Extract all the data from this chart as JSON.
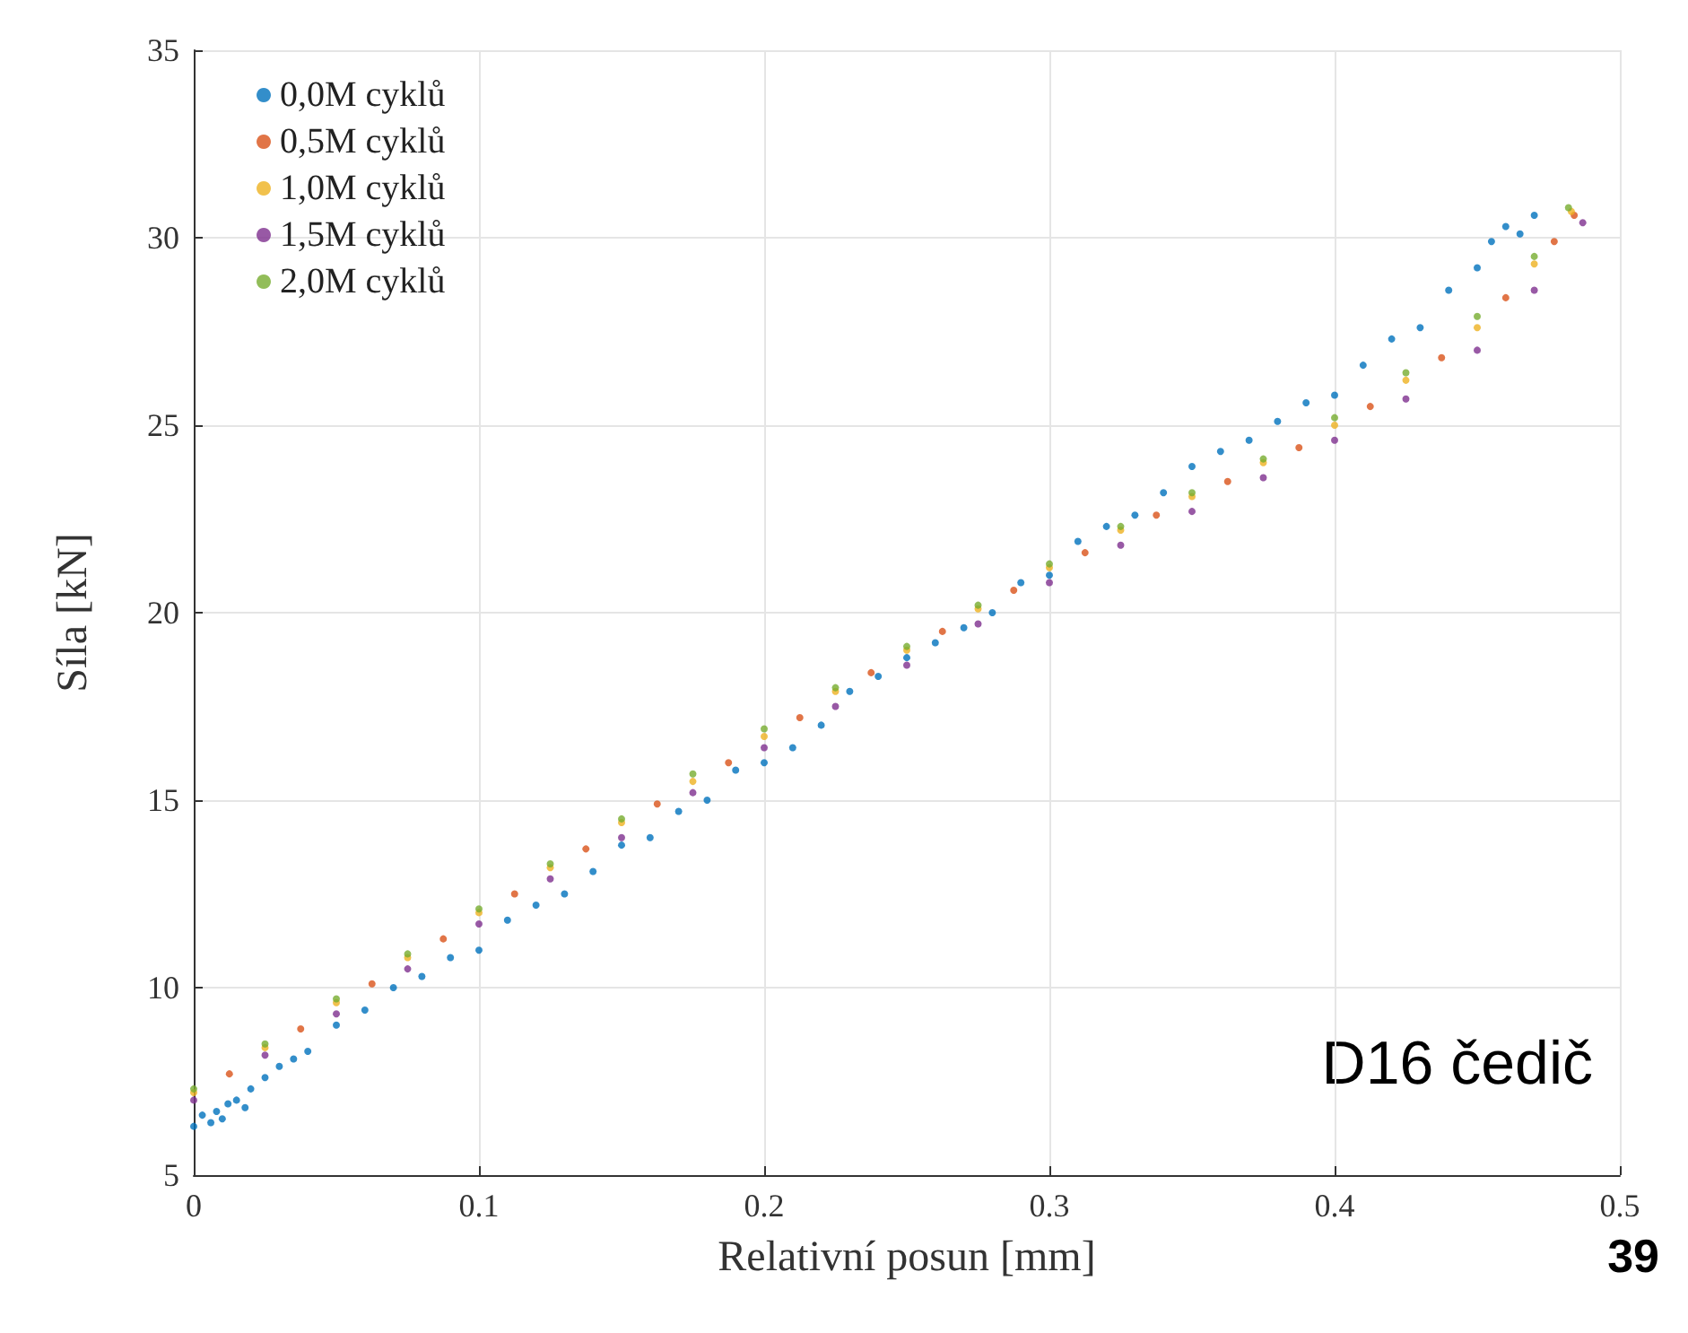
{
  "chart_data": {
    "type": "scatter",
    "xlabel": "Relativní posun [mm]",
    "ylabel": "Síla [kN]",
    "xlim": [
      0,
      0.5
    ],
    "ylim": [
      5,
      35
    ],
    "xticks": [
      0,
      0.1,
      0.2,
      0.3,
      0.4,
      0.5
    ],
    "yticks": [
      5,
      10,
      15,
      20,
      25,
      30,
      35
    ],
    "grid": true,
    "legend": "top left",
    "marker": "circle",
    "annotations": [
      "D16 čedič",
      "39"
    ],
    "series": [
      {
        "name": "0,0M cyklů",
        "color": "#0072bd",
        "x": [
          0,
          0.003,
          0.006,
          0.008,
          0.01,
          0.012,
          0.015,
          0.018,
          0.02,
          0.025,
          0.03,
          0.035,
          0.04,
          0.05,
          0.06,
          0.07,
          0.08,
          0.09,
          0.1,
          0.11,
          0.12,
          0.13,
          0.14,
          0.15,
          0.16,
          0.17,
          0.18,
          0.19,
          0.2,
          0.21,
          0.22,
          0.23,
          0.24,
          0.25,
          0.26,
          0.27,
          0.28,
          0.29,
          0.3,
          0.31,
          0.32,
          0.33,
          0.34,
          0.35,
          0.36,
          0.37,
          0.38,
          0.39,
          0.4,
          0.41,
          0.42,
          0.43,
          0.44,
          0.45,
          0.455,
          0.46,
          0.465,
          0.47
        ],
        "values": [
          6.3,
          6.6,
          6.4,
          6.7,
          6.5,
          6.9,
          7.0,
          6.8,
          7.3,
          7.6,
          7.9,
          8.1,
          8.3,
          9.0,
          9.4,
          10.0,
          10.3,
          10.8,
          11.0,
          11.8,
          12.2,
          12.5,
          13.1,
          13.8,
          14.0,
          14.7,
          15.0,
          15.8,
          16.0,
          16.4,
          17.0,
          17.9,
          18.3,
          18.8,
          19.2,
          19.6,
          20.0,
          20.8,
          21.0,
          21.9,
          22.3,
          22.6,
          23.2,
          23.9,
          24.3,
          24.6,
          25.1,
          25.6,
          25.8,
          26.6,
          27.3,
          27.6,
          28.6,
          29.2,
          29.9,
          30.3,
          30.1,
          30.6
        ]
      },
      {
        "name": "0,5M cyklů",
        "color": "#d95319",
        "x": [
          0.0125,
          0.0375,
          0.0625,
          0.0875,
          0.1125,
          0.1375,
          0.1625,
          0.1875,
          0.2125,
          0.2375,
          0.2625,
          0.2875,
          0.3125,
          0.3375,
          0.3625,
          0.3875,
          0.4125,
          0.4375,
          0.46,
          0.477,
          0.484
        ],
        "values": [
          7.7,
          8.9,
          10.1,
          11.3,
          12.5,
          13.7,
          14.9,
          16.0,
          17.2,
          18.4,
          19.5,
          20.6,
          21.6,
          22.6,
          23.5,
          24.4,
          25.5,
          26.8,
          28.4,
          29.9,
          30.6
        ]
      },
      {
        "name": "1,0M cyklů",
        "color": "#edb120",
        "x": [
          0,
          0.025,
          0.05,
          0.075,
          0.1,
          0.125,
          0.15,
          0.175,
          0.2,
          0.225,
          0.25,
          0.275,
          0.3,
          0.325,
          0.35,
          0.375,
          0.4,
          0.425,
          0.45,
          0.47,
          0.483
        ],
        "values": [
          7.2,
          8.4,
          9.6,
          10.8,
          12.0,
          13.2,
          14.4,
          15.5,
          16.7,
          17.9,
          19.0,
          20.1,
          21.2,
          22.2,
          23.1,
          24.0,
          25.0,
          26.2,
          27.6,
          29.3,
          30.7
        ]
      },
      {
        "name": "1,5M cyklů",
        "color": "#7e2f8e",
        "x": [
          0,
          0.025,
          0.05,
          0.075,
          0.1,
          0.125,
          0.15,
          0.175,
          0.2,
          0.225,
          0.25,
          0.275,
          0.3,
          0.325,
          0.35,
          0.375,
          0.4,
          0.425,
          0.45,
          0.47,
          0.487
        ],
        "values": [
          7.0,
          8.2,
          9.3,
          10.5,
          11.7,
          12.9,
          14.0,
          15.2,
          16.4,
          17.5,
          18.6,
          19.7,
          20.8,
          21.8,
          22.7,
          23.6,
          24.6,
          25.7,
          27.0,
          28.6,
          30.4
        ]
      },
      {
        "name": "2,0M cyklů",
        "color": "#77ac30",
        "x": [
          0,
          0.025,
          0.05,
          0.075,
          0.1,
          0.125,
          0.15,
          0.175,
          0.2,
          0.225,
          0.25,
          0.275,
          0.3,
          0.325,
          0.35,
          0.375,
          0.4,
          0.425,
          0.45,
          0.47,
          0.482
        ],
        "values": [
          7.3,
          8.5,
          9.7,
          10.9,
          12.1,
          13.3,
          14.5,
          15.7,
          16.9,
          18.0,
          19.1,
          20.2,
          21.3,
          22.3,
          23.2,
          24.1,
          25.2,
          26.4,
          27.9,
          29.5,
          30.8
        ]
      }
    ]
  }
}
